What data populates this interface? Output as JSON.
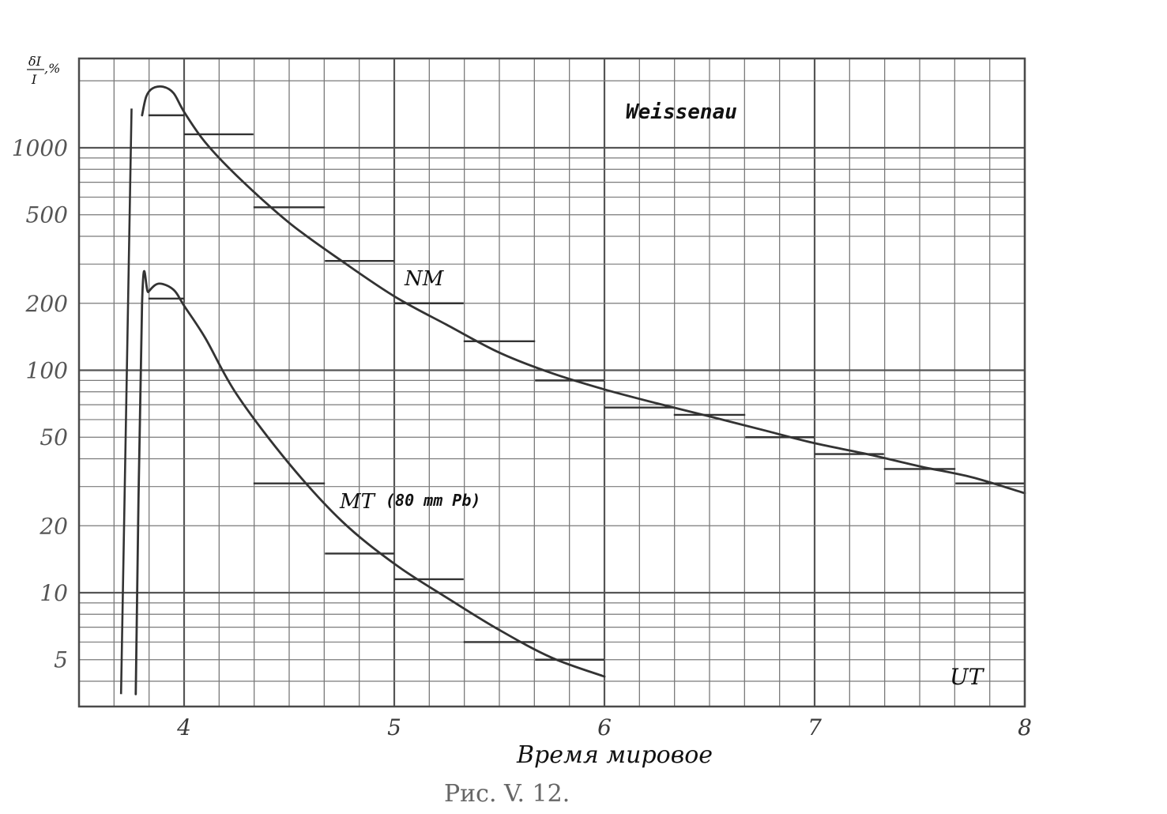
{
  "chart_data": {
    "type": "line",
    "title": "Weissenau",
    "xlabel": "Время мировое",
    "x_unit": "UT",
    "ylabel_numerator": "δI",
    "ylabel_denominator": "I",
    "ylabel_unit": ",%",
    "caption": "Рис. V. 12.",
    "y_scale": "log",
    "xlim": [
      3.5,
      8
    ],
    "ylim": [
      3.5,
      2500
    ],
    "x_ticks": [
      "4",
      "5",
      "6",
      "7",
      "8"
    ],
    "x_tick_values": [
      4,
      5,
      6,
      7,
      8
    ],
    "y_ticks": [
      "1000",
      "500",
      "200",
      "100",
      "50",
      "20",
      "10",
      "5"
    ],
    "y_tick_values": [
      1000,
      500,
      200,
      100,
      50,
      20,
      10,
      5
    ],
    "grid": true,
    "series": [
      {
        "name": "NM",
        "color": "#333333",
        "x": [
          3.8,
          3.82,
          3.85,
          3.9,
          3.95,
          4.0,
          4.1,
          4.25,
          4.5,
          4.75,
          5.0,
          5.25,
          5.5,
          5.75,
          6.0,
          6.25,
          6.5,
          6.75,
          7.0,
          7.25,
          7.5,
          7.75,
          8.0
        ],
        "y": [
          1400,
          1700,
          1850,
          1880,
          1760,
          1450,
          1060,
          750,
          460,
          310,
          215,
          160,
          120,
          97,
          82,
          71,
          62,
          54,
          47,
          42,
          37,
          33,
          28
        ],
        "steps": [
          {
            "x0": 3.83,
            "x1": 4.0,
            "y": 1400
          },
          {
            "x0": 4.0,
            "x1": 4.33,
            "y": 1150
          },
          {
            "x0": 4.33,
            "x1": 4.67,
            "y": 540
          },
          {
            "x0": 4.67,
            "x1": 5.0,
            "y": 310
          },
          {
            "x0": 5.0,
            "x1": 5.33,
            "y": 200
          },
          {
            "x0": 5.33,
            "x1": 5.67,
            "y": 135
          },
          {
            "x0": 5.67,
            "x1": 6.0,
            "y": 90
          },
          {
            "x0": 6.0,
            "x1": 6.33,
            "y": 68
          },
          {
            "x0": 6.33,
            "x1": 6.67,
            "y": 63
          },
          {
            "x0": 6.67,
            "x1": 7.0,
            "y": 50
          },
          {
            "x0": 7.0,
            "x1": 7.33,
            "y": 42
          },
          {
            "x0": 7.33,
            "x1": 7.67,
            "y": 36
          },
          {
            "x0": 7.67,
            "x1": 8.0,
            "y": 31
          }
        ]
      },
      {
        "name": "MT (80 mm Pb)",
        "color": "#333333",
        "x": [
          3.77,
          3.8,
          3.83,
          3.88,
          3.95,
          4.0,
          4.1,
          4.25,
          4.5,
          4.75,
          5.0,
          5.25,
          5.5,
          5.75,
          6.0
        ],
        "y": [
          3.5,
          200,
          225,
          245,
          230,
          195,
          140,
          78,
          38,
          21,
          13.5,
          9.5,
          6.8,
          5.1,
          4.2
        ],
        "steps": [
          {
            "x0": 3.83,
            "x1": 4.0,
            "y": 210
          },
          {
            "x0": 4.33,
            "x1": 4.67,
            "y": 31
          },
          {
            "x0": 4.67,
            "x1": 5.0,
            "y": 15
          },
          {
            "x0": 5.0,
            "x1": 5.33,
            "y": 11.5
          },
          {
            "x0": 5.33,
            "x1": 5.67,
            "y": 6
          },
          {
            "x0": 5.67,
            "x1": 6.0,
            "y": 5
          }
        ]
      }
    ],
    "pre_rise": {
      "x": [
        3.7,
        3.75
      ],
      "y": [
        3.5,
        1500
      ]
    }
  },
  "labels": {
    "title": "Weissenau",
    "nm": "NM",
    "mt": "MT",
    "mt_suffix": "(80 mm Pb)",
    "ut": "UT",
    "ylabel_top": "δI",
    "ylabel_bottom": "I",
    "ylabel_unit": ",%",
    "xlabel": "Время мировое",
    "caption": "Рис. V. 12."
  }
}
